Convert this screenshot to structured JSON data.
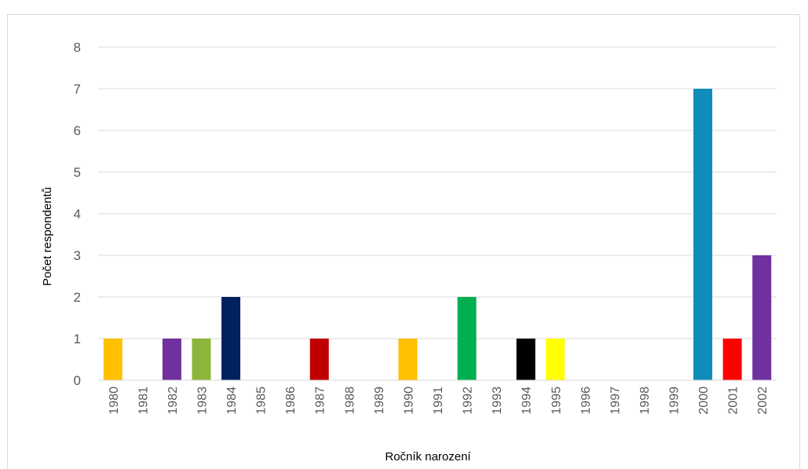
{
  "chart_data": {
    "type": "bar",
    "xlabel": "Ročník narození",
    "ylabel": "Počet respondentů",
    "ylim": [
      0,
      8
    ],
    "yticks": [
      0,
      1,
      2,
      3,
      4,
      5,
      6,
      7,
      8
    ],
    "grid": true,
    "categories": [
      "1980",
      "1981",
      "1982",
      "1983",
      "1984",
      "1985",
      "1986",
      "1987",
      "1988",
      "1989",
      "1990",
      "1991",
      "1992",
      "1993",
      "1994",
      "1995",
      "1996",
      "1997",
      "1998",
      "1999",
      "2000",
      "2001",
      "2002"
    ],
    "values": [
      1,
      0,
      1,
      1,
      2,
      0,
      0,
      1,
      0,
      0,
      1,
      0,
      2,
      0,
      1,
      1,
      0,
      0,
      0,
      0,
      7,
      1,
      3
    ],
    "colors": [
      "#FFC000",
      "#FFC000",
      "#7030A0",
      "#8DB53A",
      "#002060",
      "#002060",
      "#C00000",
      "#C00000",
      "#FFC000",
      "#FFC000",
      "#FFC000",
      "#00B050",
      "#00B050",
      "#000000",
      "#000000",
      "#FFFF00",
      "#0E8DB8",
      "#0E8DB8",
      "#0E8DB8",
      "#0E8DB8",
      "#0E8DB8",
      "#FF0000",
      "#7030A0"
    ]
  }
}
